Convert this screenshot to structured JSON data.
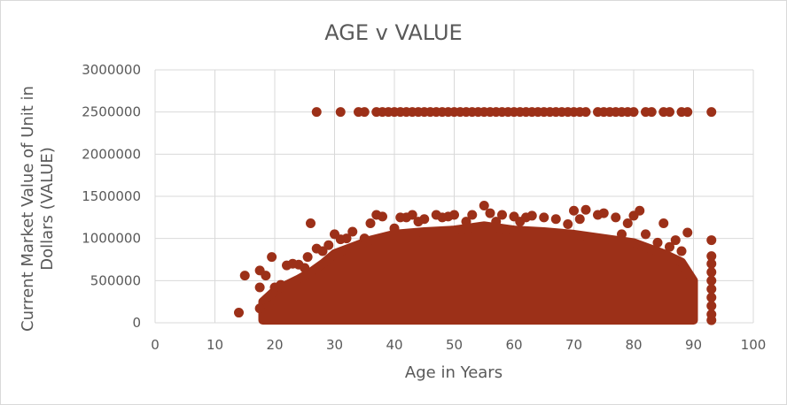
{
  "chart_data": {
    "type": "scatter",
    "title": "AGE v VALUE",
    "xlabel": "Age in Years",
    "ylabel_lines": [
      "Current Market Value of Unit in",
      "Dollars (VALUE)"
    ],
    "xlim": [
      0,
      100
    ],
    "ylim": [
      0,
      3000000
    ],
    "x_ticks": [
      0,
      10,
      20,
      30,
      40,
      50,
      60,
      70,
      80,
      90,
      100
    ],
    "y_ticks": [
      0,
      500000,
      1000000,
      1500000,
      2000000,
      2500000,
      3000000
    ],
    "grid": "vertical-and-horizontal",
    "legend": "none",
    "marker_color": "#9C3018",
    "series": [
      {
        "values_note": "dense cloud, representative points",
        "points": [
          [
            14,
            120000
          ],
          [
            15,
            560000
          ],
          [
            17.5,
            620000
          ],
          [
            17.5,
            420000
          ],
          [
            17.5,
            170000
          ],
          [
            18.5,
            560000
          ],
          [
            19,
            200000
          ],
          [
            19.5,
            780000
          ],
          [
            20,
            420000
          ],
          [
            21,
            450000
          ],
          [
            22,
            680000
          ],
          [
            23,
            700000
          ],
          [
            24,
            690000
          ],
          [
            25,
            650000
          ],
          [
            25.5,
            780000
          ],
          [
            26,
            1180000
          ],
          [
            27,
            880000
          ],
          [
            28,
            850000
          ],
          [
            29,
            920000
          ],
          [
            30,
            1050000
          ],
          [
            31,
            990000
          ],
          [
            32,
            1000000
          ],
          [
            33,
            1080000
          ],
          [
            35,
            1000000
          ],
          [
            36,
            1180000
          ],
          [
            37,
            1280000
          ],
          [
            38,
            1260000
          ],
          [
            40,
            1120000
          ],
          [
            41,
            1250000
          ],
          [
            42,
            1250000
          ],
          [
            43,
            1280000
          ],
          [
            44,
            1200000
          ],
          [
            45,
            1230000
          ],
          [
            47,
            1280000
          ],
          [
            48,
            1250000
          ],
          [
            49,
            1260000
          ],
          [
            50,
            1280000
          ],
          [
            52,
            1200000
          ],
          [
            53,
            1280000
          ],
          [
            55,
            1390000
          ],
          [
            56,
            1300000
          ],
          [
            57,
            1200000
          ],
          [
            58,
            1280000
          ],
          [
            60,
            1260000
          ],
          [
            61,
            1200000
          ],
          [
            62,
            1250000
          ],
          [
            63,
            1270000
          ],
          [
            65,
            1250000
          ],
          [
            67,
            1230000
          ],
          [
            69,
            1170000
          ],
          [
            70,
            1330000
          ],
          [
            71,
            1230000
          ],
          [
            72,
            1340000
          ],
          [
            74,
            1280000
          ],
          [
            75,
            1300000
          ],
          [
            77,
            1250000
          ],
          [
            78,
            1050000
          ],
          [
            79,
            1180000
          ],
          [
            80,
            1270000
          ],
          [
            81,
            1330000
          ],
          [
            82,
            1050000
          ],
          [
            84,
            950000
          ],
          [
            85,
            1180000
          ],
          [
            86,
            900000
          ],
          [
            87,
            980000
          ],
          [
            88,
            850000
          ],
          [
            89,
            1070000
          ],
          [
            93,
            980000
          ],
          [
            93,
            790000
          ],
          [
            93,
            700000
          ],
          [
            93,
            600000
          ],
          [
            93,
            500000
          ],
          [
            93,
            400000
          ],
          [
            93,
            300000
          ],
          [
            93,
            200000
          ],
          [
            93,
            100000
          ],
          [
            93,
            30000
          ],
          [
            27,
            2500000
          ],
          [
            31,
            2500000
          ],
          [
            34,
            2500000
          ],
          [
            35,
            2500000
          ],
          [
            37,
            2500000
          ],
          [
            38,
            2500000
          ],
          [
            39,
            2500000
          ],
          [
            40,
            2500000
          ],
          [
            41,
            2500000
          ],
          [
            42,
            2500000
          ],
          [
            43,
            2500000
          ],
          [
            44,
            2500000
          ],
          [
            45,
            2500000
          ],
          [
            46,
            2500000
          ],
          [
            47,
            2500000
          ],
          [
            48,
            2500000
          ],
          [
            49,
            2500000
          ],
          [
            50,
            2500000
          ],
          [
            51,
            2500000
          ],
          [
            52,
            2500000
          ],
          [
            53,
            2500000
          ],
          [
            54,
            2500000
          ],
          [
            55,
            2500000
          ],
          [
            56,
            2500000
          ],
          [
            57,
            2500000
          ],
          [
            58,
            2500000
          ],
          [
            59,
            2500000
          ],
          [
            60,
            2500000
          ],
          [
            61,
            2500000
          ],
          [
            62,
            2500000
          ],
          [
            63,
            2500000
          ],
          [
            64,
            2500000
          ],
          [
            65,
            2500000
          ],
          [
            66,
            2500000
          ],
          [
            67,
            2500000
          ],
          [
            68,
            2500000
          ],
          [
            69,
            2500000
          ],
          [
            70,
            2500000
          ],
          [
            71,
            2500000
          ],
          [
            72,
            2500000
          ],
          [
            74,
            2500000
          ],
          [
            75,
            2500000
          ],
          [
            76,
            2500000
          ],
          [
            77,
            2500000
          ],
          [
            78,
            2500000
          ],
          [
            79,
            2500000
          ],
          [
            80,
            2500000
          ],
          [
            82,
            2500000
          ],
          [
            83,
            2500000
          ],
          [
            85,
            2500000
          ],
          [
            86,
            2500000
          ],
          [
            88,
            2500000
          ],
          [
            89,
            2500000
          ],
          [
            93,
            2500000
          ]
        ]
      }
    ],
    "dense_cloud": {
      "x_range": [
        18,
        90
      ],
      "baseline_value": 30000,
      "upper_envelope": [
        [
          18,
          250000
        ],
        [
          20,
          380000
        ],
        [
          22,
          450000
        ],
        [
          24,
          520000
        ],
        [
          26,
          600000
        ],
        [
          28,
          700000
        ],
        [
          30,
          820000
        ],
        [
          33,
          900000
        ],
        [
          36,
          980000
        ],
        [
          40,
          1050000
        ],
        [
          45,
          1080000
        ],
        [
          50,
          1100000
        ],
        [
          55,
          1150000
        ],
        [
          60,
          1100000
        ],
        [
          65,
          1080000
        ],
        [
          70,
          1050000
        ],
        [
          75,
          1000000
        ],
        [
          80,
          950000
        ],
        [
          85,
          820000
        ],
        [
          88,
          720000
        ],
        [
          90,
          500000
        ]
      ]
    }
  }
}
